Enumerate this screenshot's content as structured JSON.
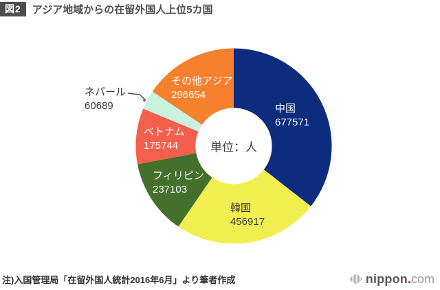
{
  "header": {
    "tag": "図2",
    "title": "アジア地域からの在留外国人上位5カ国"
  },
  "center_label": "単位：人",
  "footnote": "注)入国管理局「在留外国人統計2016年6月」より筆者作成",
  "logo": {
    "name": "nippon",
    "dot": ".",
    "tld": "com",
    "icon": "soundwave-bars-icon",
    "dot_color": "#e50012"
  },
  "chart_data": {
    "type": "pie",
    "title": "アジア地域からの在留外国人上位5カ国",
    "unit": "人",
    "total": 1904678,
    "start_angle_deg": -90,
    "direction": "clockwise",
    "donut_hole_ratio": 0.39,
    "legend_position": "on-slices",
    "segments": [
      {
        "id": "china",
        "label": "中国",
        "value": 677571,
        "color": "#0c2c7e",
        "label_color": "#ffffff"
      },
      {
        "id": "korea",
        "label": "韓国",
        "value": 456917,
        "color": "#f1ee4f",
        "label_color": "#3a3a3a"
      },
      {
        "id": "philippines",
        "label": "フィリピン",
        "value": 237103,
        "color": "#44702c",
        "label_color": "#ffffff"
      },
      {
        "id": "vietnam",
        "label": "ベトナム",
        "value": 175744,
        "color": "#f3604e",
        "label_color": "#ffffff"
      },
      {
        "id": "nepal",
        "label": "ネパール",
        "value": 60689,
        "color": "#c9f1dd",
        "label_color": "#3a3a3a"
      },
      {
        "id": "others",
        "label": "その他アジア",
        "value": 296654,
        "color": "#f5812f",
        "label_color": "#ffffff"
      }
    ]
  }
}
